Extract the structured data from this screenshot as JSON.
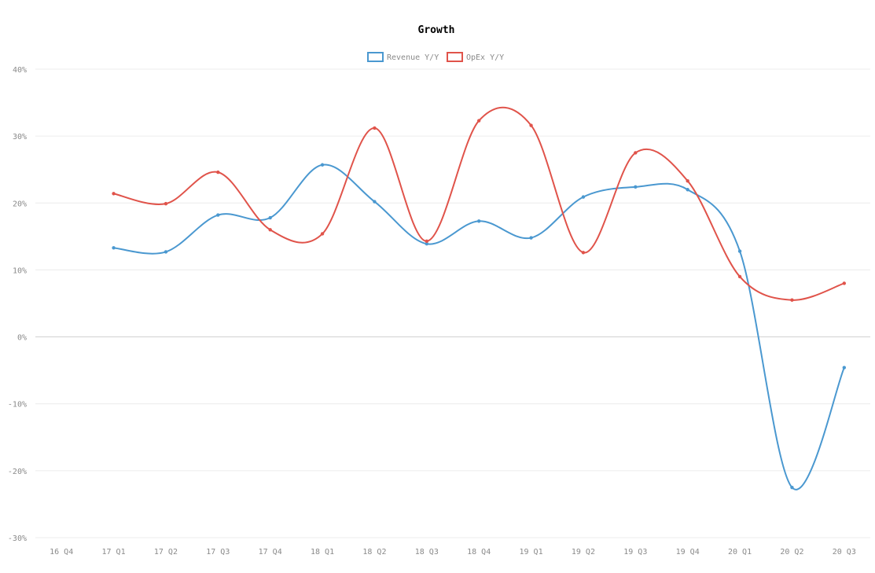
{
  "chart_data": {
    "type": "line",
    "title": "Growth",
    "xlabel": "",
    "ylabel": "",
    "categories": [
      "16 Q4",
      "17 Q1",
      "17 Q2",
      "17 Q3",
      "17 Q4",
      "18 Q1",
      "18 Q2",
      "18 Q3",
      "18 Q4",
      "19 Q1",
      "19 Q2",
      "19 Q3",
      "19 Q4",
      "20 Q1",
      "20 Q2",
      "20 Q3"
    ],
    "y_ticks": [
      "40%",
      "30%",
      "20%",
      "10%",
      "0%",
      "-10%",
      "-20%",
      "-30%"
    ],
    "ylim": [
      -30,
      40
    ],
    "grid": true,
    "legend_position": "top",
    "series": [
      {
        "name": "Revenue Y/Y",
        "color": "#4a98d0",
        "values": [
          null,
          13.3,
          12.7,
          18.2,
          17.8,
          25.7,
          20.2,
          13.9,
          17.3,
          14.8,
          20.9,
          22.4,
          22.0,
          12.8,
          -22.5,
          -4.6
        ]
      },
      {
        "name": "OpEx Y/Y",
        "color": "#e0534a",
        "values": [
          null,
          21.4,
          19.9,
          24.6,
          16.0,
          15.4,
          31.2,
          14.3,
          32.3,
          31.6,
          12.6,
          27.5,
          23.3,
          9.0,
          5.5,
          8.0
        ]
      }
    ]
  }
}
